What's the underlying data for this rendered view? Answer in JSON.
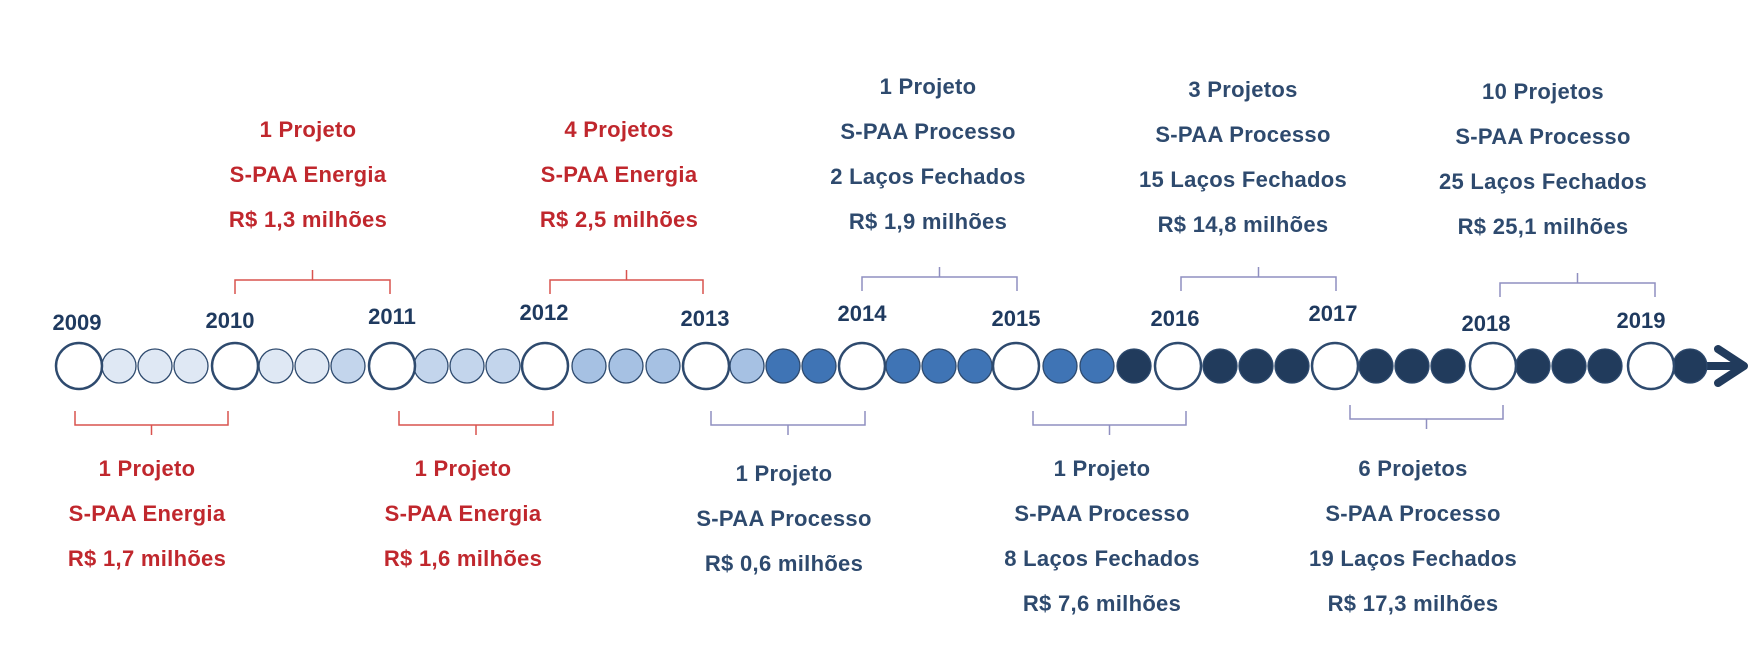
{
  "years": [
    "2009",
    "2010",
    "2011",
    "2012",
    "2013",
    "2014",
    "2015",
    "2016",
    "2017",
    "2018",
    "2019"
  ],
  "colors": {
    "energy_text": "#c0272d",
    "process_text": "#2e4a6e",
    "energy_bracket": "#d9534f",
    "process_bracket": "#8f8fc0",
    "circle_pale": "#dfe8f4",
    "circle_light": "#c3d5ec",
    "circle_mid": "#a6c1e3",
    "circle_blue": "#3f74b5",
    "circle_dark": "#213b5c",
    "outline": "#2e4a6e"
  },
  "top_labels": [
    {
      "id": "energy-2010-2011",
      "type": "energy",
      "lines": [
        "1 Projeto",
        "S-PAA Energia",
        "R$ 1,3 milhões"
      ]
    },
    {
      "id": "energy-2012-2013",
      "type": "energy",
      "lines": [
        "4 Projetos",
        "S-PAA Energia",
        "R$ 2,5 milhões"
      ]
    },
    {
      "id": "process-2014-2015",
      "type": "process",
      "lines": [
        "1 Projeto",
        "S-PAA Processo",
        "2 Laços Fechados",
        "R$ 1,9 milhões"
      ]
    },
    {
      "id": "process-2016-2017",
      "type": "process",
      "lines": [
        "3 Projetos",
        "S-PAA Processo",
        "15 Laços Fechados",
        "R$ 14,8 milhões"
      ]
    },
    {
      "id": "process-2018-2019",
      "type": "process",
      "lines": [
        "10 Projetos",
        "S-PAA Processo",
        "25 Laços Fechados",
        "R$ 25,1 milhões"
      ]
    }
  ],
  "bottom_labels": [
    {
      "id": "energy-2009-2010",
      "type": "energy",
      "lines": [
        "1 Projeto",
        "S-PAA Energia",
        "R$ 1,7 milhões"
      ]
    },
    {
      "id": "energy-2011-2012",
      "type": "energy",
      "lines": [
        "1 Projeto",
        "S-PAA Energia",
        "R$ 1,6 milhões"
      ]
    },
    {
      "id": "process-2013-2014",
      "type": "process",
      "lines": [
        "1 Projeto",
        "S-PAA Processo",
        "R$ 0,6 milhões"
      ]
    },
    {
      "id": "process-2015-2016",
      "type": "process",
      "lines": [
        "1 Projeto",
        "S-PAA Processo",
        "8 Laços Fechados",
        "R$ 7,6 milhões"
      ]
    },
    {
      "id": "process-2017-2018",
      "type": "process",
      "lines": [
        "6 Projetos",
        "S-PAA Processo",
        "19 Laços Fechados",
        "R$ 17,3 milhões"
      ]
    }
  ]
}
